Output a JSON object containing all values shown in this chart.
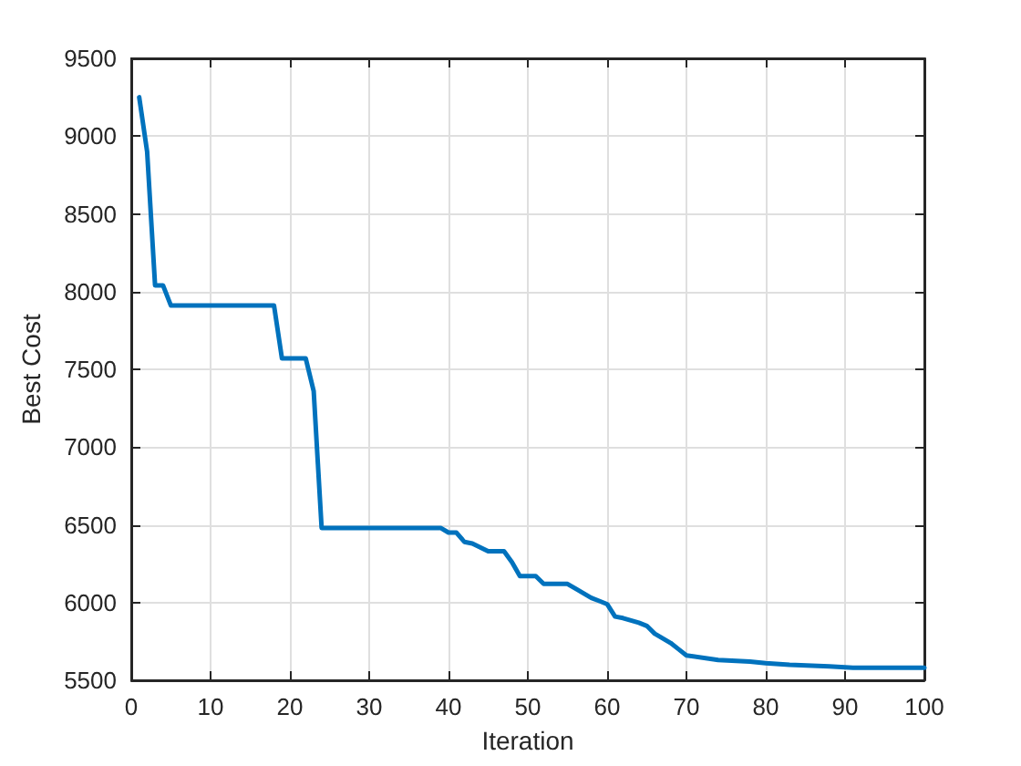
{
  "chart_data": {
    "type": "line",
    "xlabel": "Iteration",
    "ylabel": "Best Cost",
    "x": [
      1,
      2,
      3,
      4,
      5,
      18,
      19,
      22,
      23,
      24,
      39,
      40,
      41,
      42,
      43,
      45,
      47,
      48,
      49,
      51,
      52,
      55,
      56,
      58,
      59,
      60,
      61,
      62,
      64,
      65,
      66,
      68,
      69,
      70,
      74,
      78,
      80,
      83,
      88,
      91,
      100
    ],
    "series": [
      {
        "color": "#0072bd",
        "values": [
          9250,
          8900,
          8040,
          8040,
          7910,
          7910,
          7570,
          7570,
          7360,
          6480,
          6480,
          6450,
          6450,
          6390,
          6380,
          6330,
          6330,
          6260,
          6170,
          6170,
          6120,
          6120,
          6090,
          6030,
          6010,
          5990,
          5910,
          5900,
          5870,
          5850,
          5800,
          5740,
          5700,
          5660,
          5630,
          5620,
          5610,
          5600,
          5590,
          5580,
          5580
        ]
      }
    ],
    "xlim": [
      0,
      100
    ],
    "xticks": [
      0,
      10,
      20,
      30,
      40,
      50,
      60,
      70,
      80,
      90,
      100
    ],
    "ylim": [
      5500,
      9500
    ],
    "yticks": [
      5500,
      6000,
      6500,
      7000,
      7500,
      8000,
      8500,
      9000,
      9500
    ],
    "grid": true,
    "marker": "none",
    "line_style": "solid"
  }
}
